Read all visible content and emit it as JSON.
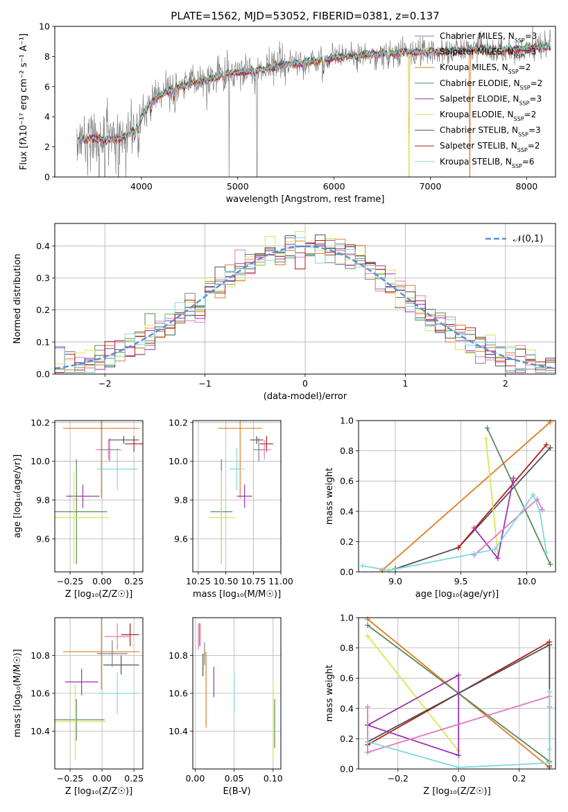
{
  "figure": {
    "title": "PLATE=1562, MJD=53052, FIBERID=0381, z=0.137"
  },
  "colors": {
    "chabrier_miles": "#808080",
    "salpeter_miles": "#e377c2",
    "kroupa_miles": "#e07b22",
    "chabrier_elodie": "#5b8a5b",
    "salpeter_elodie": "#9a32b0",
    "kroupa_elodie": "#d8e650",
    "chabrier_stelib": "#505050",
    "salpeter_stelib": "#b01c1c",
    "kroupa_stelib": "#7fd8de",
    "normal_curve": "#5b8fd9",
    "grid": "#b0b0b0"
  },
  "chart_data": [
    {
      "id": "spectrum",
      "type": "line",
      "title": "PLATE=1562, MJD=53052, FIBERID=0381, z=0.137",
      "xlabel": "wavelength [Angstrom, rest frame]",
      "ylabel": "Flux [fλ10⁻¹⁷ erg cm⁻² s⁻¹ A⁻¹]",
      "xlim": [
        3100,
        8300
      ],
      "ylim": [
        0,
        10
      ],
      "xticks": [
        4000,
        5000,
        6000,
        7000,
        8000
      ],
      "yticks": [
        0,
        2,
        4,
        6,
        8,
        10
      ],
      "grid": false,
      "legend_position": "top-right",
      "series": [
        {
          "name": "Chabrier MILES, N",
          "n": "3",
          "key": "chabrier_miles"
        },
        {
          "name": "Salpeter MILES, N",
          "n": "3",
          "key": "salpeter_miles"
        },
        {
          "name": "Kroupa MILES, N",
          "n": "2",
          "key": "kroupa_miles"
        },
        {
          "name": "Chabrier ELODIE, N",
          "n": "2",
          "key": "chabrier_elodie"
        },
        {
          "name": "Salpeter ELODIE, N",
          "n": "3",
          "key": "salpeter_elodie"
        },
        {
          "name": "Kroupa ELODIE, N",
          "n": "2",
          "key": "kroupa_elodie"
        },
        {
          "name": "Chabrier STELIB, N",
          "n": "3",
          "key": "chabrier_stelib"
        },
        {
          "name": "Salpeter STELIB, N",
          "n": "2",
          "key": "salpeter_stelib"
        },
        {
          "name": "Kroupa STELIB, N",
          "n": "6",
          "key": "kroupa_stelib"
        }
      ],
      "continuum": [
        [
          3330,
          2.4
        ],
        [
          3500,
          2.6
        ],
        [
          3700,
          2.5
        ],
        [
          3850,
          2.7
        ],
        [
          3950,
          3.4
        ],
        [
          4100,
          5.0
        ],
        [
          4300,
          5.8
        ],
        [
          4500,
          6.2
        ],
        [
          4700,
          6.5
        ],
        [
          4900,
          6.9
        ],
        [
          5100,
          7.0
        ],
        [
          5300,
          7.2
        ],
        [
          5500,
          7.5
        ],
        [
          5700,
          7.6
        ],
        [
          5900,
          7.8
        ],
        [
          6100,
          8.0
        ],
        [
          6300,
          8.1
        ],
        [
          6500,
          8.2
        ],
        [
          6700,
          8.3
        ],
        [
          6900,
          8.3
        ],
        [
          7100,
          8.35
        ],
        [
          7300,
          8.4
        ],
        [
          7500,
          8.5
        ],
        [
          7700,
          8.4
        ],
        [
          7900,
          8.5
        ],
        [
          8100,
          8.6
        ]
      ],
      "observed_dropouts": [
        3560,
        3620,
        3760,
        4910,
        5200
      ],
      "model_dropouts": [
        6780,
        7410
      ]
    },
    {
      "id": "residuals",
      "type": "histogram",
      "xlabel": "(data-model)/error",
      "ylabel": "Normed distribution",
      "xlim": [
        -2.5,
        2.5
      ],
      "ylim": [
        0,
        0.47
      ],
      "xticks": [
        -2,
        -1,
        0,
        1,
        2
      ],
      "yticks": [
        0.0,
        0.1,
        0.2,
        0.3,
        0.4
      ],
      "grid": true,
      "legend_position": "top-right",
      "legend_label": "𝒩(0,1)",
      "bins": 50,
      "note_series_follow_standard_normal": true
    },
    {
      "id": "age_vs_Z",
      "type": "scatter",
      "xlabel": "Z [log₁₀(Z/Z☉)]",
      "ylabel": "age  [log₁₀(age/yr)]",
      "xlim": [
        -0.37,
        0.32
      ],
      "ylim": [
        9.43,
        10.21
      ],
      "xticks": [
        -0.25,
        0.0,
        0.25
      ],
      "yticks": [
        9.6,
        9.8,
        10.0,
        10.2
      ],
      "grid": true,
      "points": [
        {
          "key": "kroupa_miles",
          "x": -0.005,
          "xerr": 0.3,
          "y": 10.17,
          "yerr": 0.36
        },
        {
          "key": "chabrier_stelib",
          "x": 0.17,
          "xerr": 0.12,
          "y": 10.11,
          "yerr": 0.02
        },
        {
          "key": "salpeter_stelib",
          "x": 0.25,
          "xerr": 0.07,
          "y": 10.09,
          "yerr": 0.04
        },
        {
          "key": "salpeter_miles",
          "x": 0.05,
          "xerr": 0.1,
          "y": 10.06,
          "yerr": 0.05
        },
        {
          "key": "chabrier_miles",
          "x": 0.06,
          "xerr": 0.08,
          "y": 10.06,
          "yerr": 0.06
        },
        {
          "key": "kroupa_stelib",
          "x": 0.12,
          "xerr": 0.16,
          "y": 9.96,
          "yerr": 0.11
        },
        {
          "key": "salpeter_elodie",
          "x": -0.15,
          "xerr": 0.13,
          "y": 9.82,
          "yerr": 0.06
        },
        {
          "key": "chabrier_elodie",
          "x": -0.2,
          "xerr": 0.24,
          "y": 9.74,
          "yerr": 0.27
        },
        {
          "key": "kroupa_elodie",
          "x": -0.22,
          "xerr": 0.27,
          "y": 9.71,
          "yerr": 0.24
        }
      ]
    },
    {
      "id": "age_vs_mass",
      "type": "scatter",
      "xlabel": "mass [log₁₀(M/M☉)]",
      "ylabel": "",
      "xlim": [
        10.2,
        11.0
      ],
      "ylim": [
        9.43,
        10.21
      ],
      "xticks": [
        10.25,
        10.5,
        10.75,
        11.0
      ],
      "yticks": [
        9.6,
        9.8,
        10.0,
        10.2
      ],
      "grid": true,
      "points": [
        {
          "key": "kroupa_miles",
          "x": 10.63,
          "xerr": 0.2,
          "y": 10.17,
          "yerr": 0.36
        },
        {
          "key": "chabrier_stelib",
          "x": 10.78,
          "xerr": 0.06,
          "y": 10.11,
          "yerr": 0.02
        },
        {
          "key": "salpeter_stelib",
          "x": 10.87,
          "xerr": 0.06,
          "y": 10.09,
          "yerr": 0.04
        },
        {
          "key": "salpeter_miles",
          "x": 10.85,
          "xerr": 0.06,
          "y": 10.06,
          "yerr": 0.05
        },
        {
          "key": "chabrier_miles",
          "x": 10.8,
          "xerr": 0.05,
          "y": 10.06,
          "yerr": 0.06
        },
        {
          "key": "kroupa_stelib",
          "x": 10.6,
          "xerr": 0.07,
          "y": 9.96,
          "yerr": 0.11
        },
        {
          "key": "salpeter_elodie",
          "x": 10.67,
          "xerr": 0.07,
          "y": 9.82,
          "yerr": 0.06
        },
        {
          "key": "chabrier_elodie",
          "x": 10.46,
          "xerr": 0.1,
          "y": 9.74,
          "yerr": 0.27
        },
        {
          "key": "kroupa_elodie",
          "x": 10.46,
          "xerr": 0.12,
          "y": 9.71,
          "yerr": 0.24
        }
      ]
    },
    {
      "id": "weight_vs_age",
      "type": "line",
      "xlabel": "age  [log₁₀(age/yr)]",
      "ylabel": "mass weight",
      "xlim": [
        8.72,
        10.22
      ],
      "ylim": [
        0,
        1
      ],
      "xticks": [
        9.0,
        9.5,
        10.0
      ],
      "yticks": [
        0.0,
        0.2,
        0.4,
        0.6,
        0.8,
        1.0
      ],
      "grid": true,
      "lines": [
        {
          "key": "kroupa_miles",
          "x": [
            8.9,
            10.18
          ],
          "y": [
            0.01,
            0.99
          ]
        },
        {
          "key": "chabrier_stelib",
          "x": [
            9.0,
            9.48,
            10.18
          ],
          "y": [
            0.02,
            0.16,
            0.82
          ]
        },
        {
          "key": "salpeter_stelib",
          "x": [
            9.48,
            10.15
          ],
          "y": [
            0.16,
            0.84
          ]
        },
        {
          "key": "chabrier_elodie",
          "x": [
            9.7,
            10.18
          ],
          "y": [
            0.95,
            0.05
          ]
        },
        {
          "key": "kroupa_elodie",
          "x": [
            9.69,
            9.78
          ],
          "y": [
            0.88,
            0.12
          ]
        },
        {
          "key": "salpeter_elodie",
          "x": [
            9.6,
            9.78,
            9.9
          ],
          "y": [
            0.29,
            0.09,
            0.62
          ]
        },
        {
          "key": "salpeter_miles",
          "x": [
            9.6,
            10.08,
            10.12
          ],
          "y": [
            0.11,
            0.48,
            0.41
          ]
        },
        {
          "key": "kroupa_stelib",
          "x": [
            8.75,
            8.95,
            9.6,
            9.76,
            10.05,
            10.1,
            10.15
          ],
          "y": [
            0.04,
            0.01,
            0.12,
            0.15,
            0.51,
            0.4,
            0.13
          ]
        }
      ]
    },
    {
      "id": "mass_vs_Z",
      "type": "scatter",
      "xlabel": "Z [log₁₀(Z/Z☉)]",
      "ylabel": "mass [log₁₀(M/M☉)]",
      "xlim": [
        -0.37,
        0.32
      ],
      "ylim": [
        10.2,
        11.0
      ],
      "xticks": [
        -0.25,
        0.0,
        0.25
      ],
      "yticks": [
        10.4,
        10.6,
        10.8
      ],
      "grid": true,
      "points": [
        {
          "key": "kroupa_miles",
          "x": -0.005,
          "xerr": 0.3,
          "y": 10.82,
          "yerr": 0.2
        },
        {
          "key": "salpeter_stelib",
          "x": 0.22,
          "xerr": 0.07,
          "y": 10.91,
          "yerr": 0.06
        },
        {
          "key": "salpeter_miles",
          "x": 0.12,
          "xerr": 0.1,
          "y": 10.9,
          "yerr": 0.07
        },
        {
          "key": "chabrier_stelib",
          "x": 0.15,
          "xerr": 0.14,
          "y": 10.75,
          "yerr": 0.05
        },
        {
          "key": "chabrier_miles",
          "x": 0.08,
          "xerr": 0.12,
          "y": 10.81,
          "yerr": 0.07
        },
        {
          "key": "kroupa_stelib",
          "x": 0.12,
          "xerr": 0.16,
          "y": 10.6,
          "yerr": 0.11
        },
        {
          "key": "salpeter_elodie",
          "x": -0.16,
          "xerr": 0.13,
          "y": 10.66,
          "yerr": 0.07
        },
        {
          "key": "chabrier_elodie",
          "x": -0.2,
          "xerr": 0.22,
          "y": 10.46,
          "yerr": 0.11
        },
        {
          "key": "kroupa_elodie",
          "x": -0.21,
          "xerr": 0.24,
          "y": 10.45,
          "yerr": 0.2
        }
      ]
    },
    {
      "id": "mass_vs_ebv",
      "type": "scatter",
      "xlabel": "E(B-V)",
      "ylabel": "",
      "xlim": [
        -0.003,
        0.11
      ],
      "ylim": [
        10.2,
        11.0
      ],
      "xticks": [
        0.0,
        0.05,
        0.1
      ],
      "yticks": [
        10.4,
        10.6,
        10.8
      ],
      "grid": true,
      "points": [
        {
          "key": "salpeter_stelib",
          "x": 0.006,
          "y": 10.91,
          "yerr": 0.06
        },
        {
          "key": "salpeter_miles",
          "x": 0.004,
          "y": 10.9,
          "yerr": 0.07
        },
        {
          "key": "chabrier_stelib",
          "x": 0.01,
          "y": 10.75,
          "yerr": 0.06
        },
        {
          "key": "chabrier_miles",
          "x": 0.012,
          "y": 10.81,
          "yerr": 0.06
        },
        {
          "key": "kroupa_miles",
          "x": 0.014,
          "y": 10.62,
          "yerr": 0.2
        },
        {
          "key": "salpeter_elodie",
          "x": 0.024,
          "y": 10.66,
          "yerr": 0.08
        },
        {
          "key": "kroupa_stelib",
          "x": 0.05,
          "y": 10.6,
          "yerr": 0.11
        },
        {
          "key": "chabrier_elodie",
          "x": 0.102,
          "y": 10.44,
          "yerr": 0.13
        },
        {
          "key": "kroupa_elodie",
          "x": 0.1,
          "y": 10.45,
          "yerr": 0.2
        }
      ]
    },
    {
      "id": "weight_vs_Z",
      "type": "line",
      "xlabel": "Z [log₁₀(Z/Z☉)]",
      "ylabel": "mass weight",
      "xlim": [
        -0.33,
        0.32
      ],
      "ylim": [
        0,
        1
      ],
      "xticks": [
        -0.2,
        0.0,
        0.2
      ],
      "yticks": [
        0.0,
        0.2,
        0.4,
        0.6,
        0.8,
        1.0
      ],
      "grid": true,
      "lines": [
        {
          "key": "kroupa_miles",
          "x": [
            -0.3,
            0.3
          ],
          "y": [
            0.99,
            0.01
          ]
        },
        {
          "key": "chabrier_elodie",
          "x": [
            -0.3,
            0.3
          ],
          "y": [
            0.95,
            0.05
          ]
        },
        {
          "key": "kroupa_elodie",
          "x": [
            -0.3,
            0.0
          ],
          "y": [
            0.88,
            0.12
          ]
        },
        {
          "key": "salpeter_stelib",
          "x": [
            -0.3,
            0.3
          ],
          "y": [
            0.16,
            0.84
          ]
        },
        {
          "key": "chabrier_stelib",
          "x": [
            -0.3,
            0.3,
            0.3
          ],
          "y": [
            0.18,
            0.82,
            0.02
          ]
        },
        {
          "key": "salpeter_elodie",
          "x": [
            -0.3,
            0.0,
            0.0,
            -0.3
          ],
          "y": [
            0.29,
            0.62,
            0.09,
            0.29
          ]
        },
        {
          "key": "salpeter_miles",
          "x": [
            -0.3,
            -0.3,
            0.3,
            0.3
          ],
          "y": [
            0.41,
            0.11,
            0.48,
            0.41
          ]
        },
        {
          "key": "kroupa_stelib",
          "x": [
            -0.3,
            0.0,
            0.3,
            0.3,
            0.3
          ],
          "y": [
            0.18,
            0.01,
            0.04,
            0.51,
            0.13
          ]
        }
      ]
    }
  ]
}
